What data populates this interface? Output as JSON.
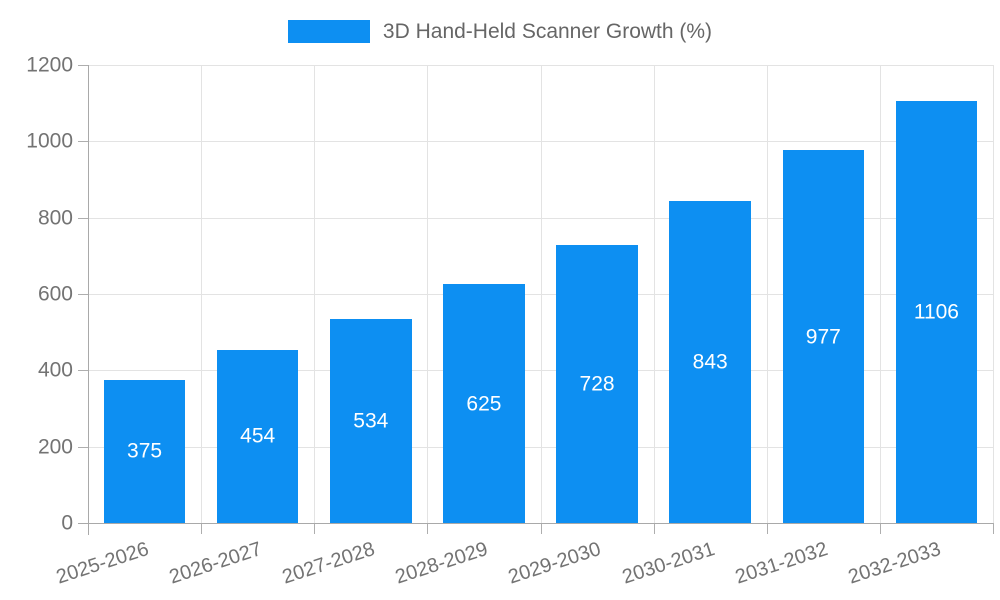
{
  "chart_data": {
    "type": "bar",
    "series_name": "3D Hand-Held Scanner Growth (%)",
    "title": "3D Hand-Held Scanner Growth (%)",
    "xlabel": "",
    "ylabel": "",
    "categories": [
      "2025-2026",
      "2026-2027",
      "2027-2028",
      "2028-2029",
      "2029-2030",
      "2030-2031",
      "2031-2032",
      "2032-2033"
    ],
    "values": [
      375,
      454,
      534,
      625,
      728,
      843,
      977,
      1106
    ],
    "value_labels": [
      "375",
      "454",
      "534",
      "625",
      "728",
      "843",
      "977",
      "1106"
    ],
    "ylim": [
      0,
      1200
    ],
    "y_ticks": [
      0,
      200,
      400,
      600,
      800,
      1000,
      1200
    ],
    "grid": true,
    "legend_position": "top",
    "colors": {
      "bar": "#0d8ff2",
      "value_label": "#ffffff",
      "axis_text": "#737373",
      "legend_text": "#666666",
      "grid_line": "#e3e3e3",
      "axis_line": "#a9a9a9"
    }
  }
}
